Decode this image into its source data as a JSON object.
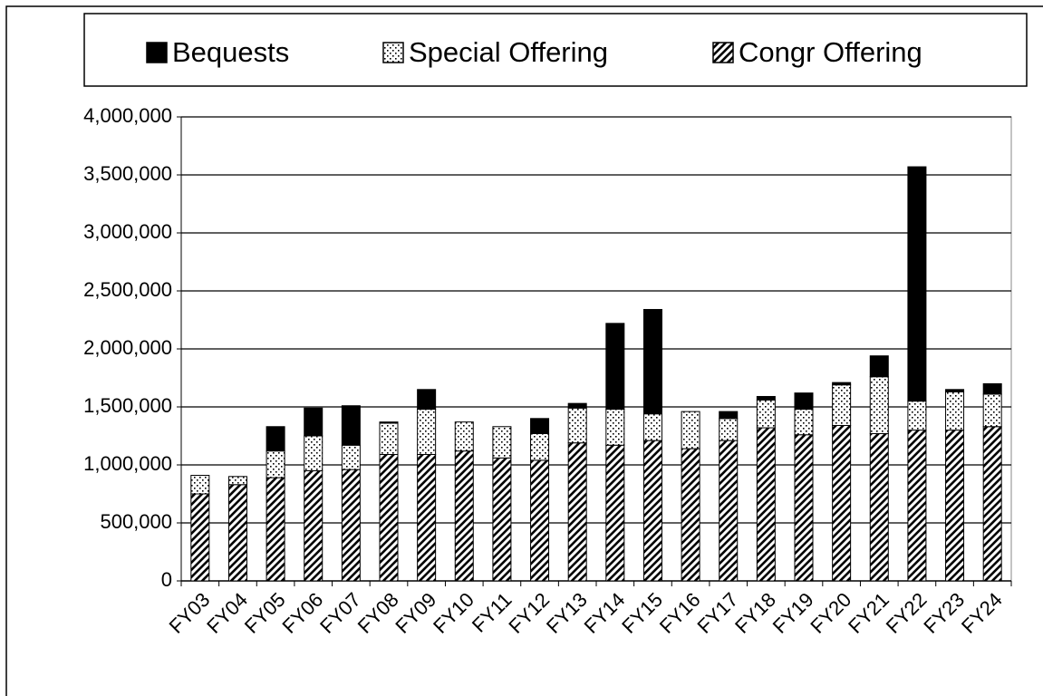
{
  "chart_data": {
    "type": "stacked_bar",
    "categories": [
      "FY03",
      "FY04",
      "FY05",
      "FY06",
      "FY07",
      "FY08",
      "FY09",
      "FY10",
      "FY11",
      "FY12",
      "FY13",
      "FY14",
      "FY15",
      "FY16",
      "FY17",
      "FY18",
      "FY19",
      "FY20",
      "FY21",
      "FY22",
      "FY23",
      "FY24"
    ],
    "series": [
      {
        "name": "Congr Offering",
        "color": "#000000",
        "pattern": "hatch",
        "values": [
          750000,
          830000,
          890000,
          950000,
          960000,
          1090000,
          1090000,
          1120000,
          1060000,
          1040000,
          1190000,
          1170000,
          1210000,
          1140000,
          1210000,
          1320000,
          1260000,
          1340000,
          1270000,
          1300000,
          1300000,
          1330000
        ]
      },
      {
        "name": "Special Offering",
        "color": "#000000",
        "pattern": "dots",
        "values": [
          160000,
          70000,
          230000,
          300000,
          210000,
          270000,
          390000,
          250000,
          270000,
          230000,
          300000,
          310000,
          230000,
          320000,
          190000,
          240000,
          220000,
          350000,
          490000,
          250000,
          330000,
          280000
        ]
      },
      {
        "name": "Bequests",
        "color": "#000000",
        "pattern": "solid",
        "values": [
          0,
          0,
          210000,
          240000,
          340000,
          10000,
          170000,
          0,
          0,
          130000,
          40000,
          740000,
          900000,
          0,
          60000,
          30000,
          140000,
          20000,
          180000,
          2020000,
          20000,
          90000
        ]
      }
    ],
    "ylim": [
      0,
      4000000
    ],
    "yticks": [
      0,
      {
        "value": 500000,
        "label": "500,000"
      },
      {
        "value": 1000000,
        "label": "1,000,000"
      },
      {
        "value": 1500000,
        "label": "1,500,000"
      },
      {
        "value": 2000000,
        "label": "2,000,000"
      },
      {
        "value": 2500000,
        "label": "2,500,000"
      },
      {
        "value": 3000000,
        "label": "3,000,000"
      },
      {
        "value": 3500000,
        "label": "3,500,000"
      },
      {
        "value": 4000000,
        "label": "4,000,000"
      }
    ],
    "grid": true,
    "legend_position": "top",
    "legend_order": "reverse"
  }
}
